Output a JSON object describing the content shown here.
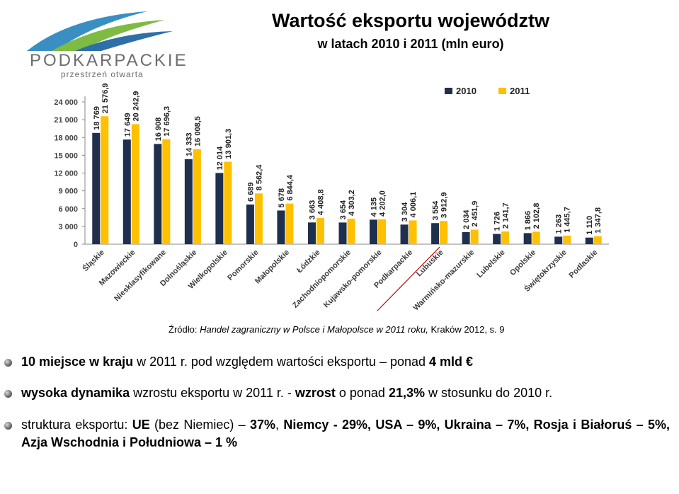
{
  "header": {
    "title": "Wartość eksportu województw",
    "subtitle": "w latach 2010 i 2011 (mln euro)"
  },
  "logo": {
    "wordmark": "PODKARPACKIE",
    "tagline": "przestrzeń otwarta"
  },
  "colors": {
    "series_2010": "#1f2f4e",
    "series_2011": "#ffc000",
    "highlight_underline": "#c00000"
  },
  "chart_data": {
    "type": "bar",
    "title": "",
    "xlabel": "",
    "ylabel": "",
    "ylim": [
      0,
      24000
    ],
    "yticks": [
      "0",
      "3 000",
      "6 000",
      "9 000",
      "12 000",
      "15 000",
      "18 000",
      "21 000",
      "24 000"
    ],
    "grid": false,
    "legend_position": "top-right",
    "categories": [
      "Śląskie",
      "Mazowieckie",
      "Niesklasyfikowane",
      "Dolnośląskie",
      "Wielkopolskie",
      "Pomorskie",
      "Małopolskie",
      "Łódzkie",
      "Zachodniopomorskie",
      "Kujawsko-pomorskie",
      "Podkarpackie",
      "Lubuskie",
      "Warmińsko-mazurskie",
      "Lubelskie",
      "Opolskie",
      "Świętokrzyskie",
      "Podlaskie"
    ],
    "highlighted_category": "Podkarpackie",
    "series": [
      {
        "name": "2010",
        "values": [
          18769,
          17649,
          16908,
          14333,
          12014,
          6689,
          5678,
          3663,
          3654,
          4135,
          3304,
          3554,
          2034,
          1726,
          1866,
          1263,
          1110
        ],
        "labels": [
          "18 769",
          "17 649",
          "16 908",
          "14 333",
          "12 014",
          "6 689",
          "5 678",
          "3 663",
          "3 654",
          "4 135",
          "3 304",
          "3 554",
          "2 034",
          "1 726",
          "1 866",
          "1 263",
          "1 110"
        ]
      },
      {
        "name": "2011",
        "values": [
          21576.9,
          20242.9,
          17696.3,
          16008.5,
          13901.3,
          8562.4,
          6844.4,
          4408.8,
          4303.2,
          4202.0,
          4006.1,
          3912.9,
          2451.9,
          2141.7,
          2102.8,
          1445.7,
          1347.8
        ],
        "labels": [
          "21 576,9",
          "20 242,9",
          "17 696,3",
          "16 008,5",
          "13 901,3",
          "8 562,4",
          "6 844,4",
          "4 408,8",
          "4 303,2",
          "4 202,0",
          "4 006,1",
          "3 912,9",
          "2 451,9",
          "2 141,7",
          "2 102,8",
          "1 445,7",
          "1 347,8"
        ]
      }
    ]
  },
  "source": {
    "prefix": "Źródło: ",
    "italic": "Handel zagraniczny w Polsce i Małopolsce w 2011 roku,",
    "suffix": " Kraków 2012, s. 9"
  },
  "bullets": [
    {
      "segments": [
        {
          "text": "10 miejsce w kraju",
          "bold": true
        },
        {
          "text": " w 2011 r. pod względem wartości eksportu – ponad ",
          "bold": false
        },
        {
          "text": "4 mld €",
          "bold": true
        }
      ]
    },
    {
      "segments": [
        {
          "text": "wysoka dynamika",
          "bold": true
        },
        {
          "text": " wzrostu eksportu w 2011 r. - ",
          "bold": false
        },
        {
          "text": "wzrost",
          "bold": true
        },
        {
          "text": " o ponad ",
          "bold": false
        },
        {
          "text": "21,3%",
          "bold": true
        },
        {
          "text": " w stosunku do 2010 r.",
          "bold": false
        }
      ]
    },
    {
      "segments": [
        {
          "text": "struktura eksportu: ",
          "bold": false
        },
        {
          "text": "UE",
          "bold": true
        },
        {
          "text": " (bez Niemiec) – ",
          "bold": false
        },
        {
          "text": "37%",
          "bold": true
        },
        {
          "text": ", ",
          "bold": false
        },
        {
          "text": "Niemcy - 29%, USA – 9%, Ukraina – 7%, Rosja i Białoruś – 5%, Azja Wschodnia i Południowa – 1 %",
          "bold": true
        }
      ]
    }
  ]
}
